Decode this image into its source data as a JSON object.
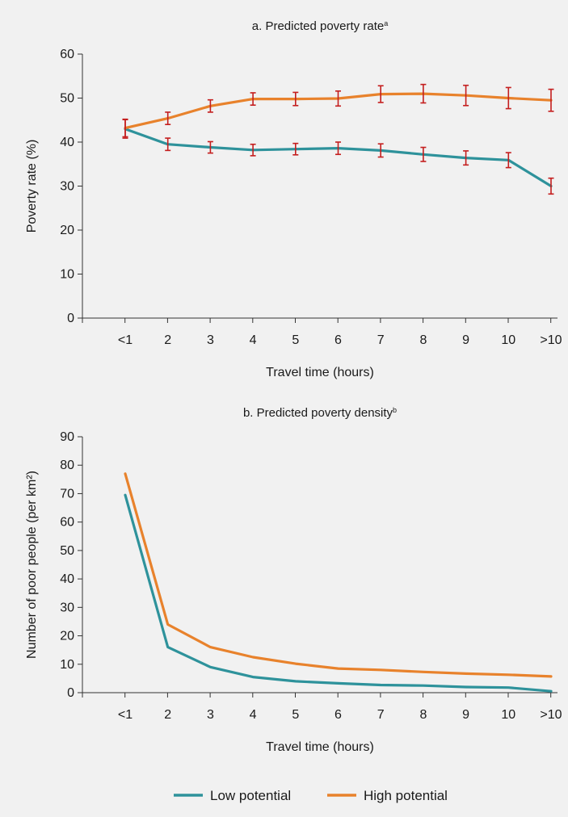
{
  "chart_data": [
    {
      "type": "line",
      "title": "a. Predicted poverty rate",
      "title_superscript": "a",
      "xlabel": "Travel time (hours)",
      "ylabel": "Poverty rate (%)",
      "ylim": [
        0,
        60
      ],
      "yticks": [
        "0",
        "10",
        "20",
        "30",
        "40",
        "50",
        "60"
      ],
      "categories": [
        "<1",
        "2",
        "3",
        "4",
        "5",
        "6",
        "7",
        "8",
        "9",
        "10",
        ">10"
      ],
      "error_bars": true,
      "series": [
        {
          "name": "Low potential",
          "values": [
            43.0,
            39.5,
            38.8,
            38.2,
            38.4,
            38.6,
            38.1,
            37.2,
            36.4,
            35.9,
            30.0
          ],
          "errors": [
            2.1,
            1.4,
            1.3,
            1.3,
            1.3,
            1.4,
            1.5,
            1.6,
            1.6,
            1.7,
            1.8
          ]
        },
        {
          "name": "High potential",
          "values": [
            43.2,
            45.4,
            48.2,
            49.8,
            49.8,
            49.9,
            50.9,
            51.0,
            50.6,
            50.0,
            49.5
          ],
          "errors": [
            2.0,
            1.4,
            1.4,
            1.4,
            1.5,
            1.7,
            1.9,
            2.1,
            2.3,
            2.4,
            2.5
          ]
        }
      ]
    },
    {
      "type": "line",
      "title": "b. Predicted poverty density",
      "title_superscript": "b",
      "xlabel": "Travel time (hours)",
      "ylabel": "Number of poor people (per km²)",
      "ylim": [
        0,
        90
      ],
      "yticks": [
        "0",
        "10",
        "20",
        "30",
        "40",
        "50",
        "60",
        "70",
        "80",
        "90"
      ],
      "categories": [
        "<1",
        "2",
        "3",
        "4",
        "5",
        "6",
        "7",
        "8",
        "9",
        "10",
        ">10"
      ],
      "error_bars": false,
      "series": [
        {
          "name": "Low potential",
          "values": [
            69.5,
            16.0,
            9.0,
            5.5,
            4.0,
            3.3,
            2.7,
            2.5,
            2.0,
            1.8,
            0.5
          ]
        },
        {
          "name": "High potential",
          "values": [
            77.0,
            24.0,
            16.0,
            12.5,
            10.2,
            8.5,
            8.0,
            7.3,
            6.7,
            6.3,
            5.7
          ]
        }
      ]
    }
  ],
  "legend": {
    "position": "bottom-center",
    "items": [
      {
        "label": "Low potential",
        "color": "#2E929B"
      },
      {
        "label": "High potential",
        "color": "#E8822C"
      }
    ]
  },
  "colors": {
    "low": "#2E929B",
    "high": "#E8822C",
    "error_bar": "#C41E1E",
    "background": "#F1F1F1"
  }
}
